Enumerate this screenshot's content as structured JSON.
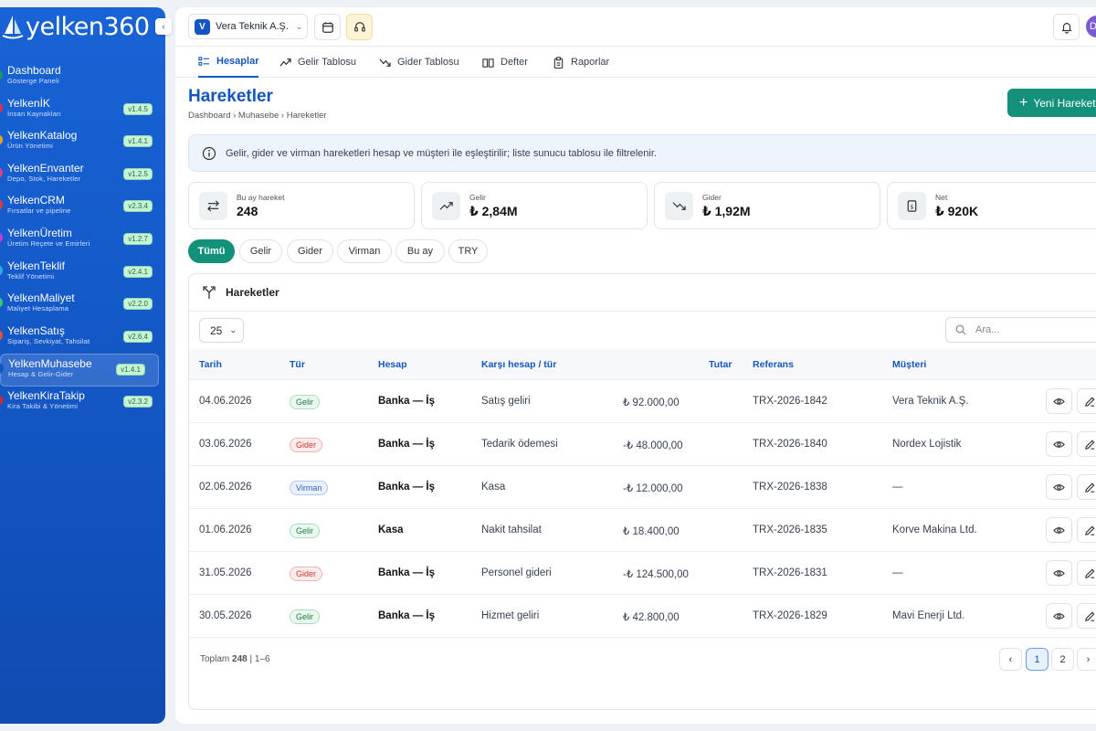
{
  "brand": {
    "logo_text": "yelken360"
  },
  "sidebar": {
    "items": [
      {
        "title": "Dashboard",
        "sub": "Gösterge Paneli",
        "version": "",
        "dot": "#1c9a5a"
      },
      {
        "title": "YelkenİK",
        "sub": "İnsan Kaynakları",
        "version": "v1.4.5",
        "dot": "#d9304f"
      },
      {
        "title": "YelkenKatalog",
        "sub": "Ürün Yönetimi",
        "version": "v1.4.1",
        "dot": "#f2a020"
      },
      {
        "title": "YelkenEnvanter",
        "sub": "Depo, Stok, Hareketler",
        "version": "v1.2.5",
        "dot": "#e63a8c"
      },
      {
        "title": "YelkenCRM",
        "sub": "Fırsatlar ve pipeline",
        "version": "v2.3.4",
        "dot": "#e23c3c"
      },
      {
        "title": "YelkenÜretim",
        "sub": "Üretim Reçete ve Emirleri",
        "version": "v1.2.7",
        "dot": "#c73ad1"
      },
      {
        "title": "YelkenTeklif",
        "sub": "Teklif Yönetimi",
        "version": "v2.4.1",
        "dot": "#2cb3d9"
      },
      {
        "title": "YelkenMaliyet",
        "sub": "Maliyet Hesaplama",
        "version": "v2.2.0",
        "dot": "#2ecc71"
      },
      {
        "title": "YelkenSatış",
        "sub": "Sipariş, Sevkiyat, Tahsilat",
        "version": "v2.6.4",
        "dot": "#e8503a"
      },
      {
        "title": "YelkenMuhasebe",
        "sub": "Hesap & Gelir-Gider",
        "version": "v1.4.1",
        "dot": "#1456c0"
      },
      {
        "title": "YelkenKiraTakip",
        "sub": "Kira Takibi & Yönetimi",
        "version": "v2.3.2",
        "dot": "#e02424"
      }
    ]
  },
  "topbar": {
    "company_initial": "V",
    "company_name": "Vera Teknik A.Ş.",
    "avatar_initial": "D"
  },
  "tabs": [
    "Hesaplar",
    "Gelir Tablosu",
    "Gider Tablosu",
    "Defter",
    "Raporlar"
  ],
  "page": {
    "title": "Hareketler",
    "breadcrumb": "Dashboard › Muhasebe › Hareketler",
    "new_button": "Yeni Hareket",
    "info": "Gelir, gider ve virman hareketleri hesap ve müşteri ile eşleştirilir; liste sunucu tablosu ile filtrelenir."
  },
  "stats": [
    {
      "label": "Bu ay hareket",
      "value": "248"
    },
    {
      "label": "Gelir",
      "value": "₺ 2,84M"
    },
    {
      "label": "Gider",
      "value": "₺ 1,92M"
    },
    {
      "label": "Net",
      "value": "₺ 920K"
    }
  ],
  "chips": [
    "Tümü",
    "Gelir",
    "Gider",
    "Virman",
    "Bu ay",
    "TRY"
  ],
  "table": {
    "title": "Hareketler",
    "page_size": "25",
    "search_placeholder": "Ara...",
    "headers": [
      "Tarih",
      "Tür",
      "Hesap",
      "Karşı hesap / tür",
      "Tutar",
      "Referans",
      "Müşteri"
    ],
    "rows": [
      {
        "date": "04.06.2026",
        "type": "Gelir",
        "kind": "gelir",
        "account": "Banka — İş",
        "counter": "Satış geliri",
        "amount": "₺ 92.000,00",
        "ref": "TRX-2026-1842",
        "customer": "Vera Teknik A.Ş."
      },
      {
        "date": "03.06.2026",
        "type": "Gider",
        "kind": "gider",
        "account": "Banka — İş",
        "counter": "Tedarik ödemesi",
        "amount": "-₺ 48.000,00",
        "ref": "TRX-2026-1840",
        "customer": "Nordex Lojistik"
      },
      {
        "date": "02.06.2026",
        "type": "Virman",
        "kind": "virman",
        "account": "Banka — İş",
        "counter": "Kasa",
        "amount": "-₺ 12.000,00",
        "ref": "TRX-2026-1838",
        "customer": "—"
      },
      {
        "date": "01.06.2026",
        "type": "Gelir",
        "kind": "gelir",
        "account": "Kasa",
        "counter": "Nakit tahsilat",
        "amount": "₺ 18.400,00",
        "ref": "TRX-2026-1835",
        "customer": "Korve Makina Ltd."
      },
      {
        "date": "31.05.2026",
        "type": "Gider",
        "kind": "gider",
        "account": "Banka — İş",
        "counter": "Personel gideri",
        "amount": "-₺ 124.500,00",
        "ref": "TRX-2026-1831",
        "customer": "—"
      },
      {
        "date": "30.05.2026",
        "type": "Gelir",
        "kind": "gelir",
        "account": "Banka — İş",
        "counter": "Hizmet geliri",
        "amount": "₺ 42.800,00",
        "ref": "TRX-2026-1829",
        "customer": "Mavi Enerji Ltd."
      }
    ],
    "footer": {
      "prefix": "Toplam",
      "total": "248",
      "range": "| 1–6"
    },
    "pages": [
      "1",
      "2"
    ],
    "prev": "‹",
    "next": "›"
  }
}
